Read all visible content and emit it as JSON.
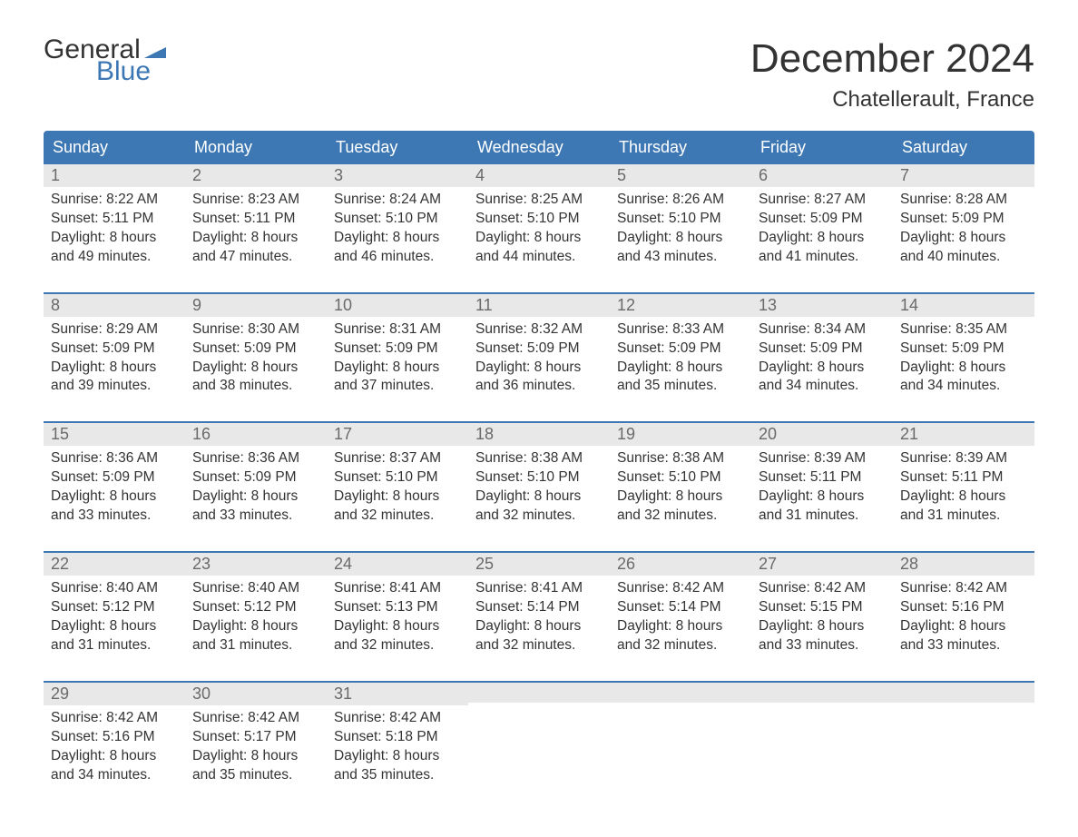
{
  "logo": {
    "text_general": "General",
    "text_blue": "Blue",
    "flag_color": "#3d78b5"
  },
  "title": "December 2024",
  "location": "Chatellerault, France",
  "colors": {
    "header_bg": "#3d78b5",
    "header_text": "#ffffff",
    "daynum_bg": "#e8e8e8",
    "daynum_text": "#6a6a6a",
    "body_text": "#333333",
    "page_bg": "#ffffff",
    "week_border": "#3d78b5"
  },
  "typography": {
    "title_fontsize": 44,
    "location_fontsize": 24,
    "dayheader_fontsize": 18,
    "daynum_fontsize": 18,
    "body_fontsize": 15.5,
    "font_family": "Arial"
  },
  "day_names": [
    "Sunday",
    "Monday",
    "Tuesday",
    "Wednesday",
    "Thursday",
    "Friday",
    "Saturday"
  ],
  "weeks": [
    [
      {
        "n": "1",
        "sunrise": "Sunrise: 8:22 AM",
        "sunset": "Sunset: 5:11 PM",
        "d1": "Daylight: 8 hours",
        "d2": "and 49 minutes."
      },
      {
        "n": "2",
        "sunrise": "Sunrise: 8:23 AM",
        "sunset": "Sunset: 5:11 PM",
        "d1": "Daylight: 8 hours",
        "d2": "and 47 minutes."
      },
      {
        "n": "3",
        "sunrise": "Sunrise: 8:24 AM",
        "sunset": "Sunset: 5:10 PM",
        "d1": "Daylight: 8 hours",
        "d2": "and 46 minutes."
      },
      {
        "n": "4",
        "sunrise": "Sunrise: 8:25 AM",
        "sunset": "Sunset: 5:10 PM",
        "d1": "Daylight: 8 hours",
        "d2": "and 44 minutes."
      },
      {
        "n": "5",
        "sunrise": "Sunrise: 8:26 AM",
        "sunset": "Sunset: 5:10 PM",
        "d1": "Daylight: 8 hours",
        "d2": "and 43 minutes."
      },
      {
        "n": "6",
        "sunrise": "Sunrise: 8:27 AM",
        "sunset": "Sunset: 5:09 PM",
        "d1": "Daylight: 8 hours",
        "d2": "and 41 minutes."
      },
      {
        "n": "7",
        "sunrise": "Sunrise: 8:28 AM",
        "sunset": "Sunset: 5:09 PM",
        "d1": "Daylight: 8 hours",
        "d2": "and 40 minutes."
      }
    ],
    [
      {
        "n": "8",
        "sunrise": "Sunrise: 8:29 AM",
        "sunset": "Sunset: 5:09 PM",
        "d1": "Daylight: 8 hours",
        "d2": "and 39 minutes."
      },
      {
        "n": "9",
        "sunrise": "Sunrise: 8:30 AM",
        "sunset": "Sunset: 5:09 PM",
        "d1": "Daylight: 8 hours",
        "d2": "and 38 minutes."
      },
      {
        "n": "10",
        "sunrise": "Sunrise: 8:31 AM",
        "sunset": "Sunset: 5:09 PM",
        "d1": "Daylight: 8 hours",
        "d2": "and 37 minutes."
      },
      {
        "n": "11",
        "sunrise": "Sunrise: 8:32 AM",
        "sunset": "Sunset: 5:09 PM",
        "d1": "Daylight: 8 hours",
        "d2": "and 36 minutes."
      },
      {
        "n": "12",
        "sunrise": "Sunrise: 8:33 AM",
        "sunset": "Sunset: 5:09 PM",
        "d1": "Daylight: 8 hours",
        "d2": "and 35 minutes."
      },
      {
        "n": "13",
        "sunrise": "Sunrise: 8:34 AM",
        "sunset": "Sunset: 5:09 PM",
        "d1": "Daylight: 8 hours",
        "d2": "and 34 minutes."
      },
      {
        "n": "14",
        "sunrise": "Sunrise: 8:35 AM",
        "sunset": "Sunset: 5:09 PM",
        "d1": "Daylight: 8 hours",
        "d2": "and 34 minutes."
      }
    ],
    [
      {
        "n": "15",
        "sunrise": "Sunrise: 8:36 AM",
        "sunset": "Sunset: 5:09 PM",
        "d1": "Daylight: 8 hours",
        "d2": "and 33 minutes."
      },
      {
        "n": "16",
        "sunrise": "Sunrise: 8:36 AM",
        "sunset": "Sunset: 5:09 PM",
        "d1": "Daylight: 8 hours",
        "d2": "and 33 minutes."
      },
      {
        "n": "17",
        "sunrise": "Sunrise: 8:37 AM",
        "sunset": "Sunset: 5:10 PM",
        "d1": "Daylight: 8 hours",
        "d2": "and 32 minutes."
      },
      {
        "n": "18",
        "sunrise": "Sunrise: 8:38 AM",
        "sunset": "Sunset: 5:10 PM",
        "d1": "Daylight: 8 hours",
        "d2": "and 32 minutes."
      },
      {
        "n": "19",
        "sunrise": "Sunrise: 8:38 AM",
        "sunset": "Sunset: 5:10 PM",
        "d1": "Daylight: 8 hours",
        "d2": "and 32 minutes."
      },
      {
        "n": "20",
        "sunrise": "Sunrise: 8:39 AM",
        "sunset": "Sunset: 5:11 PM",
        "d1": "Daylight: 8 hours",
        "d2": "and 31 minutes."
      },
      {
        "n": "21",
        "sunrise": "Sunrise: 8:39 AM",
        "sunset": "Sunset: 5:11 PM",
        "d1": "Daylight: 8 hours",
        "d2": "and 31 minutes."
      }
    ],
    [
      {
        "n": "22",
        "sunrise": "Sunrise: 8:40 AM",
        "sunset": "Sunset: 5:12 PM",
        "d1": "Daylight: 8 hours",
        "d2": "and 31 minutes."
      },
      {
        "n": "23",
        "sunrise": "Sunrise: 8:40 AM",
        "sunset": "Sunset: 5:12 PM",
        "d1": "Daylight: 8 hours",
        "d2": "and 31 minutes."
      },
      {
        "n": "24",
        "sunrise": "Sunrise: 8:41 AM",
        "sunset": "Sunset: 5:13 PM",
        "d1": "Daylight: 8 hours",
        "d2": "and 32 minutes."
      },
      {
        "n": "25",
        "sunrise": "Sunrise: 8:41 AM",
        "sunset": "Sunset: 5:14 PM",
        "d1": "Daylight: 8 hours",
        "d2": "and 32 minutes."
      },
      {
        "n": "26",
        "sunrise": "Sunrise: 8:42 AM",
        "sunset": "Sunset: 5:14 PM",
        "d1": "Daylight: 8 hours",
        "d2": "and 32 minutes."
      },
      {
        "n": "27",
        "sunrise": "Sunrise: 8:42 AM",
        "sunset": "Sunset: 5:15 PM",
        "d1": "Daylight: 8 hours",
        "d2": "and 33 minutes."
      },
      {
        "n": "28",
        "sunrise": "Sunrise: 8:42 AM",
        "sunset": "Sunset: 5:16 PM",
        "d1": "Daylight: 8 hours",
        "d2": "and 33 minutes."
      }
    ],
    [
      {
        "n": "29",
        "sunrise": "Sunrise: 8:42 AM",
        "sunset": "Sunset: 5:16 PM",
        "d1": "Daylight: 8 hours",
        "d2": "and 34 minutes."
      },
      {
        "n": "30",
        "sunrise": "Sunrise: 8:42 AM",
        "sunset": "Sunset: 5:17 PM",
        "d1": "Daylight: 8 hours",
        "d2": "and 35 minutes."
      },
      {
        "n": "31",
        "sunrise": "Sunrise: 8:42 AM",
        "sunset": "Sunset: 5:18 PM",
        "d1": "Daylight: 8 hours",
        "d2": "and 35 minutes."
      },
      null,
      null,
      null,
      null
    ]
  ]
}
